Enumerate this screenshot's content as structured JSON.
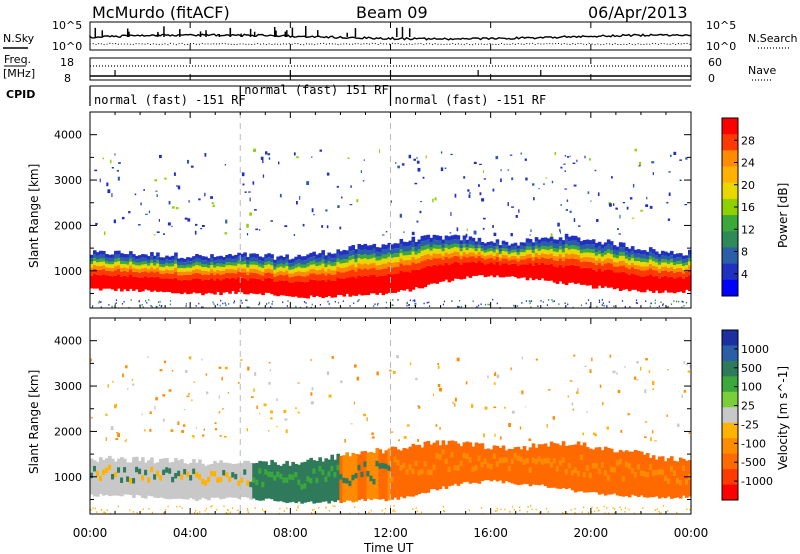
{
  "header": {
    "station": "McMurdo (fitACF)",
    "beam": "Beam 09",
    "date": "06/Apr/2013"
  },
  "housekeeping": {
    "nsky_label": "N.Sky",
    "nsearch_label": "N.Search",
    "noise_ticks_left": [
      "10^5",
      "10^0"
    ],
    "noise_ticks_right": [
      "10^5",
      "10^0"
    ],
    "freq_label_1": "Freq.",
    "freq_label_2": "[MHz]",
    "freq_ticks": [
      "18",
      "8"
    ],
    "nave_label": "Nave",
    "nave_ticks": [
      "60",
      "0"
    ],
    "cpid_label": "CPID",
    "cpid_segments": [
      {
        "label": "normal (fast) -151 RF",
        "start_hour": 0.0,
        "end_hour": 6.0
      },
      {
        "label": "normal (fast) 151 RF",
        "start_hour": 6.0,
        "end_hour": 12.0
      },
      {
        "label": "normal (fast) -151 RF",
        "start_hour": 12.0,
        "end_hour": 24.0
      }
    ]
  },
  "axes": {
    "y_label": "Slant Range [km]",
    "y_ticks": [
      "1000",
      "2000",
      "3000",
      "4000"
    ],
    "x_label": "Time UT",
    "x_ticks": [
      "00:00",
      "04:00",
      "08:00",
      "12:00",
      "16:00",
      "20:00",
      "00:00"
    ]
  },
  "colorbars": {
    "power": {
      "label": "Power [dB]",
      "ticks": [
        "28",
        "24",
        "20",
        "16",
        "12",
        "8",
        "4"
      ],
      "colors_top_to_bottom": [
        "#ff0000",
        "#ff3a00",
        "#ff8c00",
        "#ffb300",
        "#e8d800",
        "#8fd000",
        "#3aa83a",
        "#2f8a5a",
        "#2a5fa8",
        "#2030c0",
        "#0000ff"
      ]
    },
    "velocity": {
      "label": "Velocity [m s^-1]",
      "ticks": [
        "1000",
        "500",
        "100",
        "25",
        "-25",
        "-100",
        "-500",
        "-1000"
      ],
      "colors_top_to_bottom": [
        "#1c2fa0",
        "#2a5fa8",
        "#2f7a5a",
        "#3aa83a",
        "#7ccd3a",
        "#c8c8c8",
        "#ffb300",
        "#ff8c00",
        "#ff6a00",
        "#ff3a00",
        "#ff0000"
      ]
    }
  },
  "chart_data": [
    {
      "type": "heatmap",
      "name": "Power",
      "x_range_hours": [
        0,
        24
      ],
      "y_range_km": [
        180,
        4500
      ],
      "echo_band": {
        "hours": [
          0,
          1,
          2,
          3,
          4,
          5,
          6,
          7,
          8,
          9,
          10,
          11,
          12,
          13,
          14,
          15,
          16,
          17,
          18,
          19,
          20,
          21,
          22,
          23,
          24
        ],
        "bottom_km": [
          600,
          580,
          560,
          520,
          500,
          500,
          520,
          500,
          420,
          420,
          450,
          480,
          500,
          600,
          750,
          850,
          900,
          850,
          800,
          720,
          650,
          600,
          560,
          540,
          550
        ],
        "top_km": [
          1380,
          1400,
          1370,
          1350,
          1330,
          1300,
          1350,
          1320,
          1300,
          1380,
          1450,
          1550,
          1600,
          1700,
          1750,
          1720,
          1650,
          1600,
          1700,
          1750,
          1680,
          1600,
          1500,
          1400,
          1400
        ]
      },
      "colorbar_range_db": [
        0,
        30
      ]
    },
    {
      "type": "heatmap",
      "name": "Velocity",
      "x_range_hours": [
        0,
        24
      ],
      "y_range_km": [
        180,
        4500
      ],
      "echo_band": {
        "hours": [
          0,
          1,
          2,
          3,
          4,
          5,
          6,
          7,
          8,
          9,
          10,
          11,
          12,
          13,
          14,
          15,
          16,
          17,
          18,
          19,
          20,
          21,
          22,
          23,
          24
        ],
        "bottom_km": [
          600,
          580,
          560,
          520,
          500,
          500,
          520,
          500,
          420,
          420,
          450,
          480,
          500,
          600,
          750,
          850,
          900,
          850,
          800,
          720,
          650,
          600,
          560,
          540,
          550
        ],
        "top_km": [
          1380,
          1400,
          1370,
          1350,
          1330,
          1300,
          1350,
          1320,
          1300,
          1380,
          1450,
          1550,
          1600,
          1700,
          1750,
          1720,
          1650,
          1600,
          1700,
          1750,
          1680,
          1600,
          1500,
          1400,
          1400
        ]
      },
      "colorbar_range_ms": [
        -1000,
        1000
      ]
    }
  ]
}
